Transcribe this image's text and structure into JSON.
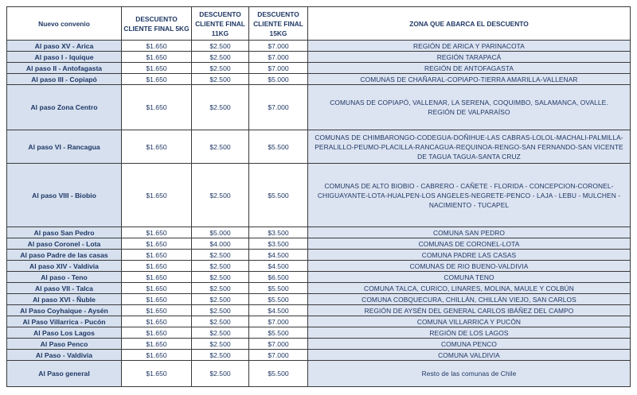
{
  "headers": [
    "Nuevo convenio",
    "DESCUENTO CLIENTE FINAL 5KG",
    "DESCUENTO CLIENTE FINAL 11KG",
    "DESCUENTO CLIENTE FINAL 15KG",
    "ZONA QUE ABARCA EL DESCUENTO"
  ],
  "rows": [
    {
      "name": "Al paso XV - Arica",
      "p5": "$1.650",
      "p11": "$2.500",
      "p15": "$7.000",
      "zone": "REGIÓN DE ARICA Y PARINACOTA"
    },
    {
      "name": "Al paso I - Iquique",
      "p5": "$1.650",
      "p11": "$2.500",
      "p15": "$7.000",
      "zone": "REGIÓN TARAPACÁ"
    },
    {
      "name": "Al paso II - Antofagasta",
      "p5": "$1.650",
      "p11": "$2.500",
      "p15": "$7.000",
      "zone": "REGIÓN DE ANTOFAGASTA"
    },
    {
      "name": "Al paso III - Copiapó",
      "p5": "$1.650",
      "p11": "$2.500",
      "p15": "$5.000",
      "zone": "COMUNAS DE CHAÑARAL-COPIAPO-TIERRA AMARILLA-VALLENAR"
    },
    {
      "name": "Al paso Zona Centro",
      "p5": "$1.650",
      "p11": "$2.500",
      "p15": "$7.000",
      "zone": "COMUNAS DE COPIAPÓ, VALLENAR, LA SERENA, COQUIMBO, SALAMANCA, OVALLE. REGIÓN DE VALPARAÍSO"
    },
    {
      "name": "Al paso VI - Rancagua",
      "p5": "$1.650",
      "p11": "$2.500",
      "p15": "$5.500",
      "zone": "COMUNAS DE CHIMBARONGO-CODEGUA-DOÑIHUE-LAS CABRAS-LOLOL-MACHALI-PALMILLA-PERALILLO-PEUMO-PLACILLA-RANCAGUA-REQUINOA-RENGO-SAN FERNANDO-SAN VICENTE DE TAGUA TAGUA-SANTA CRUZ"
    },
    {
      "name": "Al paso VIII - Biobio",
      "p5": "$1.650",
      "p11": "$2.500",
      "p15": "$5.500",
      "zone": "COMUNAS DE ALTO BIOBIO - CABRERO - CAÑETE - FLORIDA - CONCEPCION-CORONEL-CHIGUAYANTE-LOTA-HUALPEN-LOS ANGELES-NEGRETE-PENCO - LAJA - LEBU - MULCHEN - NACIMIENTO - TUCAPEL"
    },
    {
      "name": "Al paso San Pedro",
      "p5": "$1.650",
      "p11": "$5.000",
      "p15": "$3.500",
      "zone": "COMUNA SAN PEDRO"
    },
    {
      "name": "Al paso Coronel - Lota",
      "p5": "$1.650",
      "p11": "$4.000",
      "p15": "$3.500",
      "zone": "COMUNAS DE CORONEL-LOTA"
    },
    {
      "name": "Al paso Padre de las casas",
      "p5": "$1.650",
      "p11": "$2.500",
      "p15": "$4.500",
      "zone": "COMUNA PADRE LAS CASAS"
    },
    {
      "name": "Al paso XIV - Valdivia",
      "p5": "$1.650",
      "p11": "$2.500",
      "p15": "$4.500",
      "zone": "COMUNAS DE RIO BUENO-VALDIVIA"
    },
    {
      "name": "Al paso - Teno",
      "p5": "$1.650",
      "p11": "$2.500",
      "p15": "$6.500",
      "zone": "COMUNA TENO"
    },
    {
      "name": "Al paso VII - Talca",
      "p5": "$1.650",
      "p11": "$2.500",
      "p15": "$5.500",
      "zone": "COMUNA TALCA, CURICO, LINARES, MOLINA, MAULE Y COLBÚN"
    },
    {
      "name": "Al paso XVI - Ñuble",
      "p5": "$1.650",
      "p11": "$2.500",
      "p15": "$5.500",
      "zone": "COMUNA COBQUECURA, CHILLÁN, CHILLÁN VIEJO, SAN CARLOS"
    },
    {
      "name": "Al Paso Coyhaique - Aysén",
      "p5": "$1.650",
      "p11": "$2.500",
      "p15": "$4.500",
      "zone": "REGIÓN DE AYSÉN DEL GENERAL CARLOS IBÁÑEZ DEL CAMPO"
    },
    {
      "name": "Al Paso Villarrica - Pucón",
      "p5": "$1.650",
      "p11": "$2.500",
      "p15": "$7.000",
      "zone": "COMUNA VILLARRICA Y PUCÓN"
    },
    {
      "name": "Al Paso  Los Lagos",
      "p5": "$1.650",
      "p11": "$2.500",
      "p15": "$5.500",
      "zone": "REGIÓN DE LOS LAGOS"
    },
    {
      "name": "Al Paso Penco",
      "p5": "$1.650",
      "p11": "$2.500",
      "p15": "$7.000",
      "zone": "COMUNA PENCO"
    },
    {
      "name": "Al Paso - Valdivia",
      "p5": "$1.650",
      "p11": "$2.500",
      "p15": "$7.000",
      "zone": "COMUNA VALDIVIA"
    },
    {
      "name": "Al Paso general",
      "p5": "$1.650",
      "p11": "$2.500",
      "p15": "$5.500",
      "zone": "Resto de las comunas de Chile"
    }
  ]
}
